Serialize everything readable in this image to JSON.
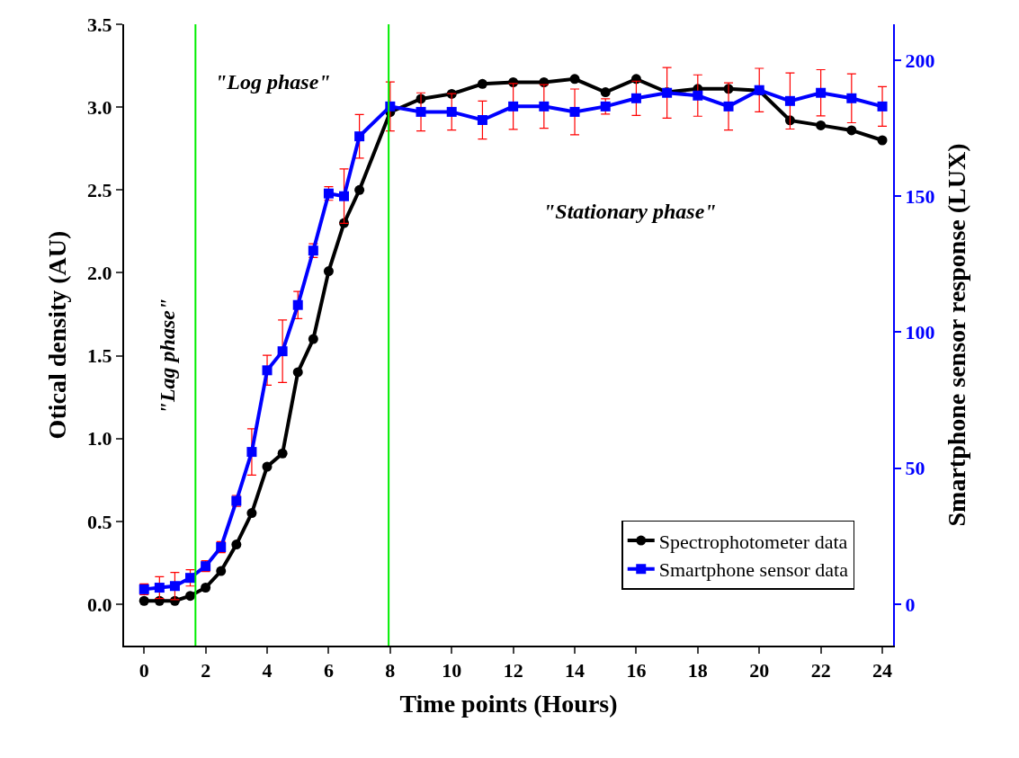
{
  "chart_data": {
    "type": "line",
    "xlabel": "Time points (Hours)",
    "ylabel": "Otical density (AU)",
    "y2label": "Smartphone sensor response (LUX)",
    "x": [
      0,
      0.5,
      1,
      1.5,
      2,
      2.5,
      3,
      3.5,
      4,
      4.5,
      5,
      5.5,
      6,
      6.5,
      7,
      8,
      9,
      10,
      11,
      12,
      13,
      14,
      15,
      16,
      17,
      18,
      19,
      20,
      21,
      22,
      23,
      24
    ],
    "series": [
      {
        "name": "Spectrophotometer data",
        "color": "#000000",
        "marker": "circle",
        "values": [
          0.02,
          0.02,
          0.02,
          0.05,
          0.1,
          0.2,
          0.36,
          0.55,
          0.83,
          0.91,
          1.4,
          1.6,
          2.01,
          2.3,
          2.5,
          2.97,
          3.05,
          3.08,
          3.14,
          3.15,
          3.15,
          3.17,
          3.09,
          3.17,
          3.09,
          3.11,
          3.11,
          3.1,
          2.92,
          2.89,
          2.86,
          2.8
        ]
      },
      {
        "name": "Smartphone sensor data",
        "color": "#0000ff",
        "marker": "square",
        "axis": "y2",
        "values": [
          5.5,
          6.1,
          6.7,
          9.7,
          14,
          21,
          38,
          56,
          86,
          93,
          110,
          130,
          151,
          150,
          172,
          183,
          181,
          181,
          178,
          183,
          183,
          181,
          183,
          186,
          188,
          187,
          183,
          189,
          185,
          188,
          186,
          183
        ],
        "errors": [
          2,
          4,
          5,
          3,
          2,
          2,
          2,
          8.5,
          5.5,
          11.5,
          5,
          2.5,
          2.5,
          10,
          8,
          9,
          7,
          6.7,
          7,
          8.4,
          8,
          8.4,
          2.8,
          6.3,
          9.3,
          7.6,
          8.7,
          8,
          10.3,
          8.5,
          9,
          7.3
        ]
      }
    ],
    "xlim": [
      -0.65,
      24.35
    ],
    "xticks": [
      0,
      2,
      4,
      6,
      8,
      10,
      12,
      14,
      16,
      18,
      20,
      22,
      24
    ],
    "ylim": [
      -0.25,
      3.5
    ],
    "yticks": [
      {
        "value": 0,
        "label": "0.0"
      },
      0.5,
      {
        "value": 1,
        "label": "1.0"
      },
      1.5,
      {
        "value": 2,
        "label": "2.0"
      },
      2.5,
      {
        "value": 3,
        "label": "3.0"
      },
      3.5
    ],
    "y2lim": [
      -15.2,
      213.2
    ],
    "y2ticks": [
      0,
      50,
      100,
      150,
      200
    ],
    "ref_lines": [
      {
        "axis": "x",
        "value": 1.67,
        "color": "#00ee00"
      },
      {
        "axis": "x",
        "value": 7.95,
        "color": "#00ee00"
      }
    ],
    "annotations": [
      "\"Lag phase\"",
      "\"Log phase\"",
      "\"Stationary phase\""
    ],
    "legend": "bottom right"
  }
}
